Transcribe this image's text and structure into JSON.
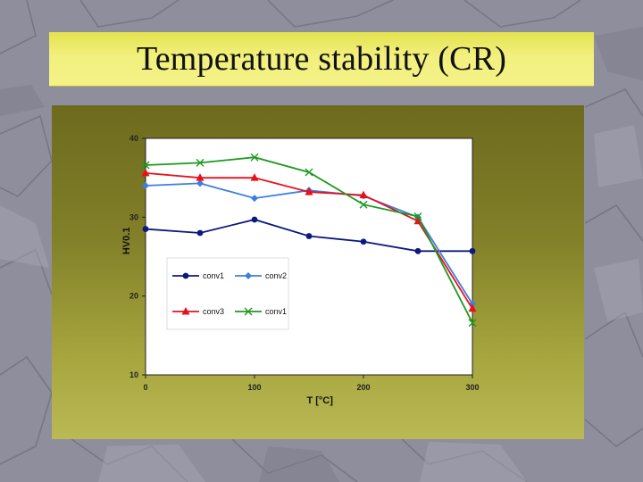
{
  "slide": {
    "title": "Temperature stability (CR)"
  },
  "colors": {
    "title_band": "#f0ee74",
    "chart_background": "#8a8730",
    "plot_area": "#ffffff"
  },
  "chart_data": {
    "type": "line",
    "title": "",
    "xlabel": "T [°C]",
    "ylabel": "HV0.1",
    "xlim": [
      0,
      300
    ],
    "ylim": [
      10,
      40
    ],
    "xticks": [
      0,
      100,
      200,
      300
    ],
    "yticks": [
      10,
      20,
      30,
      40
    ],
    "grid": false,
    "legend_position": "bottom-left",
    "series": [
      {
        "name": "conv1",
        "color": "#0b1a7c",
        "marker": "circle",
        "x": [
          0,
          50,
          100,
          150,
          200,
          250,
          300
        ],
        "y": [
          28.5,
          28.0,
          29.7,
          27.6,
          26.9,
          25.7,
          25.7
        ]
      },
      {
        "name": "conv2",
        "color": "#3d7fe0",
        "marker": "diamond",
        "x": [
          0,
          50,
          100,
          150,
          200,
          250,
          300
        ],
        "y": [
          34.0,
          34.3,
          32.4,
          33.4,
          32.7,
          30.0,
          19.0
        ]
      },
      {
        "name": "conv3",
        "color": "#e8101a",
        "marker": "triangle",
        "x": [
          0,
          50,
          100,
          150,
          200,
          250,
          300
        ],
        "y": [
          35.6,
          35.0,
          35.0,
          33.2,
          32.8,
          29.5,
          18.4
        ]
      },
      {
        "name": "conv1",
        "color": "#1d9a22",
        "marker": "x",
        "x": [
          0,
          50,
          100,
          150,
          200,
          250,
          300
        ],
        "y": [
          36.6,
          36.9,
          37.6,
          35.7,
          31.6,
          30.1,
          16.6
        ]
      }
    ]
  }
}
